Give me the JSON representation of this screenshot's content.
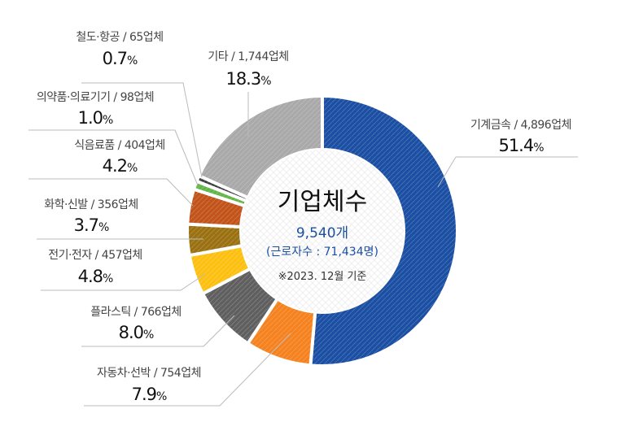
{
  "chart_data": {
    "type": "pie",
    "title": "기업체수",
    "total": "9,540개",
    "workers": "(근로자수 : 71,434명)",
    "note": "※2023. 12월 기준",
    "unit": "%",
    "slices": [
      {
        "name": "기계금속",
        "count": "4,896업체",
        "value": 51.4,
        "pct": "51.4",
        "color": "#1b4fa3"
      },
      {
        "name": "자동차·선박",
        "count": "754업체",
        "value": 7.9,
        "pct": "7.9",
        "color": "#f5821f"
      },
      {
        "name": "플라스틱",
        "count": "766업체",
        "value": 8.0,
        "pct": "8.0",
        "color": "#5f5f5f"
      },
      {
        "name": "전기·전자",
        "count": "457업체",
        "value": 4.8,
        "pct": "4.8",
        "color": "#fdc010"
      },
      {
        "name": "화학·신발",
        "count": "356업체",
        "value": 3.7,
        "pct": "3.7",
        "color": "#9a7010"
      },
      {
        "name": "식음료품",
        "count": "404업체",
        "value": 4.2,
        "pct": "4.2",
        "color": "#c2531a"
      },
      {
        "name": "의약품·의료기기",
        "count": "98업체",
        "value": 1.0,
        "pct": "1.0",
        "color": "#62b546"
      },
      {
        "name": "철도·항공",
        "count": "65업체",
        "value": 0.7,
        "pct": "0.7",
        "color": "#3a3a40"
      },
      {
        "name": "기타",
        "count": "1,744업체",
        "value": 18.3,
        "pct": "18.3",
        "color": "#a9a9a9"
      }
    ]
  }
}
